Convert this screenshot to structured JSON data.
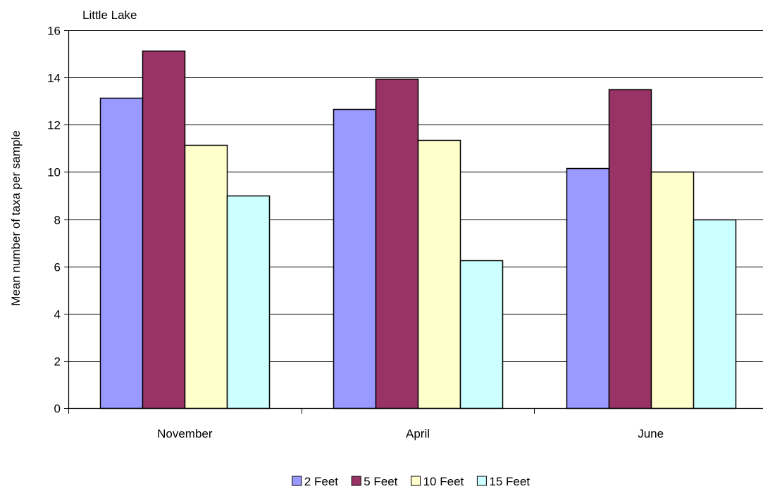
{
  "chart_data": {
    "type": "bar",
    "title": "Little Lake",
    "xlabel": "",
    "ylabel": "Mean number of taxa per sample",
    "categories": [
      "November",
      "April",
      "June"
    ],
    "series": [
      {
        "name": "2 Feet",
        "values": [
          13.15,
          12.65,
          10.15
        ],
        "color": "#9999FF"
      },
      {
        "name": "5 Feet",
        "values": [
          15.15,
          13.95,
          13.5
        ],
        "color": "#993366"
      },
      {
        "name": "10 Feet",
        "values": [
          11.15,
          11.35,
          10.0
        ],
        "color": "#FFFFCC"
      },
      {
        "name": "15 Feet",
        "values": [
          9.0,
          6.25,
          8.0
        ],
        "color": "#CCFFFF"
      }
    ],
    "ylim": [
      0,
      16
    ],
    "yticks": [
      0,
      2,
      4,
      6,
      8,
      10,
      12,
      14,
      16
    ],
    "grid": true,
    "legend_position": "bottom"
  }
}
